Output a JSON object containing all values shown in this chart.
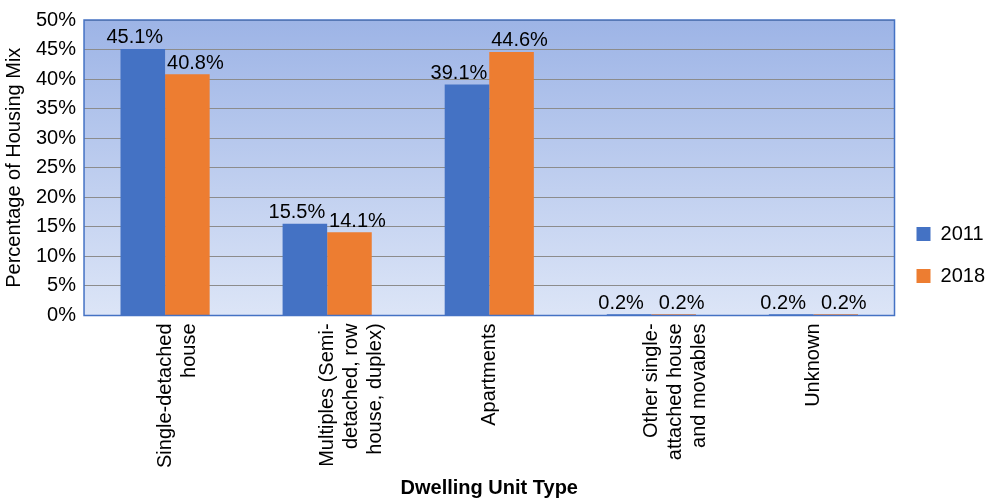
{
  "chart_data": {
    "type": "bar",
    "xlabel": "Dwelling Unit Type",
    "ylabel": "Percentage of Housing Mix",
    "categories": [
      "Single-detached house",
      "Multiples (Semi-detached, row house, duplex)",
      "Apartments",
      "Other single-attached house and movables",
      "Unknown"
    ],
    "series": [
      {
        "name": "2011",
        "color": "#4472c4",
        "values": [
          45.1,
          15.5,
          39.1,
          0.2,
          0.2
        ]
      },
      {
        "name": "2018",
        "color": "#ed7d31",
        "values": [
          40.8,
          14.1,
          44.6,
          0.2,
          0.2
        ]
      }
    ],
    "ylim": [
      0,
      50
    ],
    "yticks": [
      {
        "value": 0,
        "label": "0%"
      },
      {
        "value": 5,
        "label": "5%"
      },
      {
        "value": 10,
        "label": "10%"
      },
      {
        "value": 15,
        "label": "15%"
      },
      {
        "value": 20,
        "label": "20%"
      },
      {
        "value": 25,
        "label": "25%"
      },
      {
        "value": 30,
        "label": "30%"
      },
      {
        "value": 35,
        "label": "35%"
      },
      {
        "value": 40,
        "label": "40%"
      },
      {
        "value": 45,
        "label": "45%"
      },
      {
        "value": 50,
        "label": "50%"
      }
    ],
    "value_labels": [
      [
        "45.1%",
        "15.5%",
        "39.1%",
        "0.2%",
        "0.2%"
      ],
      [
        "40.8%",
        "14.1%",
        "44.6%",
        "0.2%",
        "0.2%"
      ]
    ],
    "grid": "y",
    "legend": "right"
  }
}
